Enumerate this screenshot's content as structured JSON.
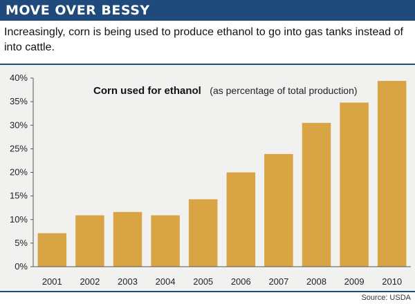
{
  "header": {
    "title": "MOVE OVER BESSY",
    "subtitle": "Increasingly, corn is being used to produce ethanol to go into gas tanks instead of into cattle."
  },
  "source": "Source: USDA",
  "colors": {
    "banner": "#1f4a7b",
    "bar": "#d9a544",
    "panel": "#f1f1ef"
  },
  "chart_data": {
    "type": "bar",
    "title": "Corn used for ethanol",
    "title_note": "(as percentage of total production)",
    "xlabel": "",
    "ylabel": "",
    "categories": [
      "2001",
      "2002",
      "2003",
      "2004",
      "2005",
      "2006",
      "2007",
      "2008",
      "2009",
      "2010"
    ],
    "values": [
      7.1,
      10.9,
      11.6,
      10.9,
      14.3,
      20.0,
      23.9,
      30.5,
      34.8,
      39.4
    ],
    "ylim": [
      0,
      40
    ],
    "yticks": [
      0,
      5,
      10,
      15,
      20,
      25,
      30,
      35,
      40
    ],
    "ytick_labels": [
      "0%",
      "5%",
      "10%",
      "15%",
      "20%",
      "25%",
      "30%",
      "35%",
      "40%"
    ],
    "grid": false,
    "legend": "none"
  }
}
